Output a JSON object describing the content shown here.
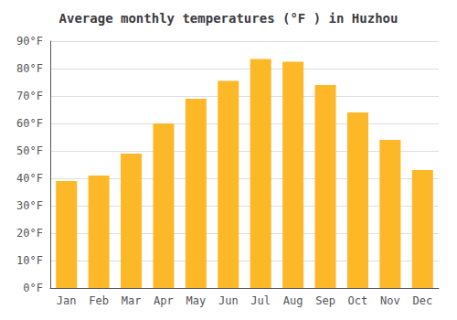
{
  "chart_data": {
    "type": "bar",
    "title": "Average monthly temperatures (°F ) in Huzhou",
    "categories": [
      "Jan",
      "Feb",
      "Mar",
      "Apr",
      "May",
      "Jun",
      "Jul",
      "Aug",
      "Sep",
      "Oct",
      "Nov",
      "Dec"
    ],
    "values": [
      39,
      41,
      49,
      60,
      69,
      75.5,
      83.5,
      82.5,
      74,
      64,
      54,
      43
    ],
    "color": "#FDB827",
    "ylim": [
      0,
      90
    ],
    "yticks": [
      {
        "value": 0,
        "label": "0°F"
      },
      {
        "value": 10,
        "label": "10°F"
      },
      {
        "value": 20,
        "label": "20°F"
      },
      {
        "value": 30,
        "label": "30°F"
      },
      {
        "value": 40,
        "label": "40°F"
      },
      {
        "value": 50,
        "label": "50°F"
      },
      {
        "value": 60,
        "label": "60°F"
      },
      {
        "value": 70,
        "label": "70°F"
      },
      {
        "value": 80,
        "label": "80°F"
      },
      {
        "value": 90,
        "label": "90°F"
      }
    ],
    "grid": true
  }
}
